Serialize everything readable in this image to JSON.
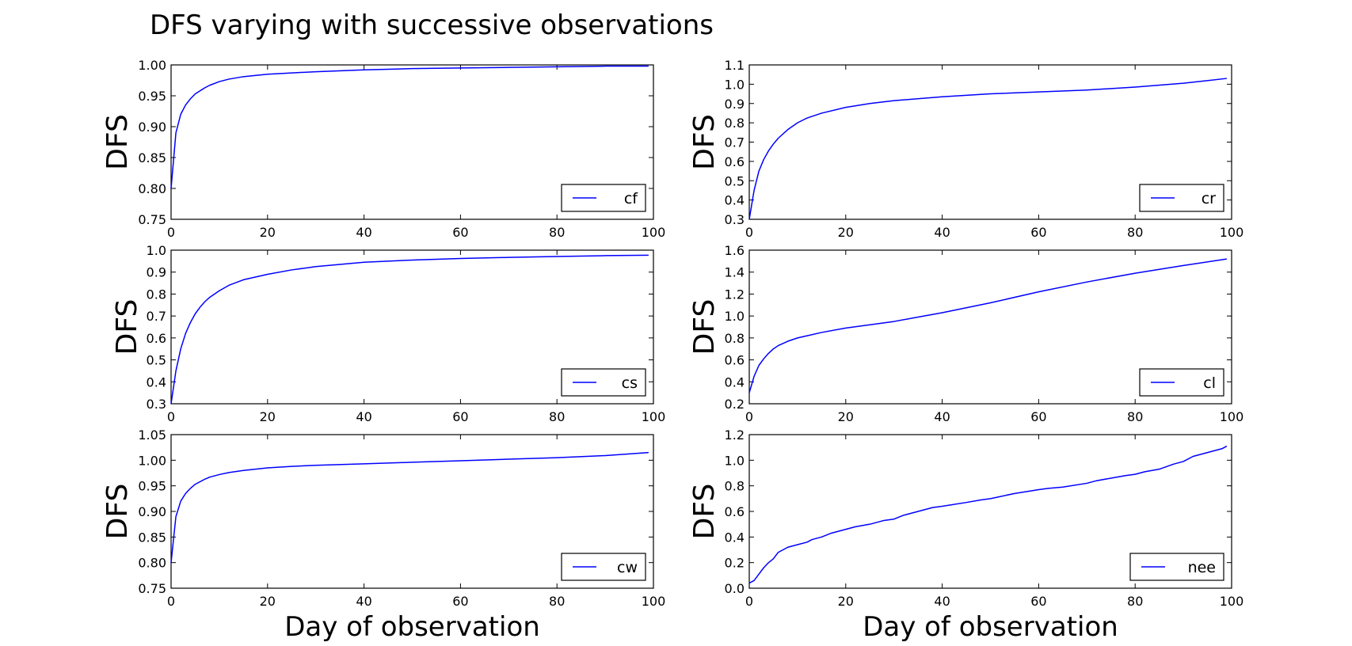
{
  "figure_title": "DFS varying with successive observations",
  "chart_data": [
    {
      "type": "line",
      "series_label": "cf",
      "ylabel": "DFS",
      "xlabel": "",
      "xlim": [
        0,
        100
      ],
      "ylim": [
        0.75,
        1.0
      ],
      "xticks": [
        0,
        20,
        40,
        60,
        80,
        100
      ],
      "yticks": [
        0.75,
        0.8,
        0.85,
        0.9,
        0.95,
        1.0
      ],
      "ytick_labels": [
        "0.75",
        "0.80",
        "0.85",
        "0.90",
        "0.95",
        "1.00"
      ],
      "legend_loc": "lower right",
      "line_color": "#0000ff",
      "x": [
        0,
        1,
        2,
        3,
        4,
        5,
        6,
        7,
        8,
        10,
        12,
        15,
        20,
        25,
        30,
        40,
        50,
        60,
        70,
        80,
        90,
        99
      ],
      "y": [
        0.8,
        0.89,
        0.92,
        0.935,
        0.945,
        0.953,
        0.958,
        0.963,
        0.967,
        0.973,
        0.977,
        0.981,
        0.985,
        0.987,
        0.989,
        0.992,
        0.994,
        0.995,
        0.996,
        0.997,
        0.998,
        0.998
      ]
    },
    {
      "type": "line",
      "series_label": "cr",
      "ylabel": "DFS",
      "xlabel": "",
      "xlim": [
        0,
        100
      ],
      "ylim": [
        0.3,
        1.1
      ],
      "xticks": [
        0,
        20,
        40,
        60,
        80,
        100
      ],
      "yticks": [
        0.3,
        0.4,
        0.5,
        0.6,
        0.7,
        0.8,
        0.9,
        1.0,
        1.1
      ],
      "ytick_labels": [
        "0.3",
        "0.4",
        "0.5",
        "0.6",
        "0.7",
        "0.8",
        "0.9",
        "1.0",
        "1.1"
      ],
      "legend_loc": "lower right",
      "line_color": "#0000ff",
      "x": [
        0,
        1,
        2,
        3,
        4,
        5,
        6,
        8,
        10,
        12,
        15,
        20,
        25,
        30,
        40,
        50,
        60,
        70,
        80,
        90,
        99
      ],
      "y": [
        0.3,
        0.45,
        0.55,
        0.61,
        0.655,
        0.69,
        0.72,
        0.765,
        0.8,
        0.825,
        0.85,
        0.88,
        0.9,
        0.915,
        0.935,
        0.95,
        0.96,
        0.97,
        0.985,
        1.005,
        1.03
      ]
    },
    {
      "type": "line",
      "series_label": "cs",
      "ylabel": "DFS",
      "xlabel": "",
      "xlim": [
        0,
        100
      ],
      "ylim": [
        0.3,
        1.0
      ],
      "xticks": [
        0,
        20,
        40,
        60,
        80,
        100
      ],
      "yticks": [
        0.3,
        0.4,
        0.5,
        0.6,
        0.7,
        0.8,
        0.9,
        1.0
      ],
      "ytick_labels": [
        "0.3",
        "0.4",
        "0.5",
        "0.6",
        "0.7",
        "0.8",
        "0.9",
        "1.0"
      ],
      "legend_loc": "lower right",
      "line_color": "#0000ff",
      "x": [
        0,
        1,
        2,
        3,
        4,
        5,
        6,
        7,
        8,
        10,
        12,
        15,
        20,
        25,
        30,
        40,
        50,
        60,
        70,
        80,
        90,
        99
      ],
      "y": [
        0.3,
        0.45,
        0.55,
        0.62,
        0.67,
        0.71,
        0.74,
        0.765,
        0.785,
        0.815,
        0.84,
        0.865,
        0.89,
        0.91,
        0.925,
        0.945,
        0.955,
        0.962,
        0.967,
        0.971,
        0.975,
        0.977
      ]
    },
    {
      "type": "line",
      "series_label": "cl",
      "ylabel": "DFS",
      "xlabel": "",
      "xlim": [
        0,
        100
      ],
      "ylim": [
        0.2,
        1.6
      ],
      "xticks": [
        0,
        20,
        40,
        60,
        80,
        100
      ],
      "yticks": [
        0.2,
        0.4,
        0.6,
        0.8,
        1.0,
        1.2,
        1.4,
        1.6
      ],
      "ytick_labels": [
        "0.2",
        "0.4",
        "0.6",
        "0.8",
        "1.0",
        "1.2",
        "1.4",
        "1.6"
      ],
      "legend_loc": "lower right",
      "line_color": "#0000ff",
      "x": [
        0,
        1,
        2,
        3,
        4,
        5,
        6,
        8,
        10,
        12,
        15,
        20,
        25,
        30,
        35,
        40,
        50,
        60,
        70,
        80,
        90,
        99
      ],
      "y": [
        0.3,
        0.45,
        0.55,
        0.61,
        0.66,
        0.7,
        0.73,
        0.77,
        0.8,
        0.82,
        0.85,
        0.89,
        0.92,
        0.95,
        0.99,
        1.03,
        1.12,
        1.22,
        1.31,
        1.39,
        1.46,
        1.52
      ]
    },
    {
      "type": "line",
      "series_label": "cw",
      "ylabel": "DFS",
      "xlabel": "Day of observation",
      "xlim": [
        0,
        100
      ],
      "ylim": [
        0.75,
        1.05
      ],
      "xticks": [
        0,
        20,
        40,
        60,
        80,
        100
      ],
      "yticks": [
        0.75,
        0.8,
        0.85,
        0.9,
        0.95,
        1.0,
        1.05
      ],
      "ytick_labels": [
        "0.75",
        "0.80",
        "0.85",
        "0.90",
        "0.95",
        "1.00",
        "1.05"
      ],
      "legend_loc": "lower right",
      "line_color": "#0000ff",
      "x": [
        0,
        1,
        2,
        3,
        4,
        5,
        6,
        7,
        8,
        10,
        12,
        15,
        20,
        25,
        30,
        40,
        50,
        60,
        70,
        80,
        90,
        99
      ],
      "y": [
        0.8,
        0.89,
        0.92,
        0.935,
        0.945,
        0.953,
        0.958,
        0.963,
        0.967,
        0.972,
        0.976,
        0.98,
        0.985,
        0.988,
        0.99,
        0.993,
        0.996,
        0.999,
        1.002,
        1.005,
        1.009,
        1.015
      ]
    },
    {
      "type": "line",
      "series_label": "nee",
      "ylabel": "DFS",
      "xlabel": "Day of observation",
      "xlim": [
        0,
        100
      ],
      "ylim": [
        0.0,
        1.2
      ],
      "xticks": [
        0,
        20,
        40,
        60,
        80,
        100
      ],
      "yticks": [
        0.0,
        0.2,
        0.4,
        0.6,
        0.8,
        1.0,
        1.2
      ],
      "ytick_labels": [
        "0.0",
        "0.2",
        "0.4",
        "0.6",
        "0.8",
        "1.0",
        "1.2"
      ],
      "legend_loc": "lower right",
      "line_color": "#0000ff",
      "x": [
        0,
        1,
        2,
        3,
        4,
        5,
        6,
        7,
        8,
        10,
        12,
        13,
        15,
        17,
        20,
        22,
        25,
        28,
        30,
        32,
        35,
        38,
        40,
        45,
        48,
        50,
        55,
        60,
        62,
        65,
        70,
        72,
        75,
        78,
        80,
        82,
        85,
        88,
        90,
        92,
        95,
        98,
        99
      ],
      "y": [
        0.04,
        0.06,
        0.11,
        0.16,
        0.2,
        0.23,
        0.28,
        0.3,
        0.32,
        0.34,
        0.36,
        0.38,
        0.4,
        0.43,
        0.46,
        0.48,
        0.5,
        0.53,
        0.54,
        0.57,
        0.6,
        0.63,
        0.64,
        0.67,
        0.69,
        0.7,
        0.74,
        0.77,
        0.78,
        0.79,
        0.82,
        0.84,
        0.86,
        0.88,
        0.89,
        0.91,
        0.93,
        0.97,
        0.99,
        1.03,
        1.06,
        1.09,
        1.11
      ]
    }
  ]
}
